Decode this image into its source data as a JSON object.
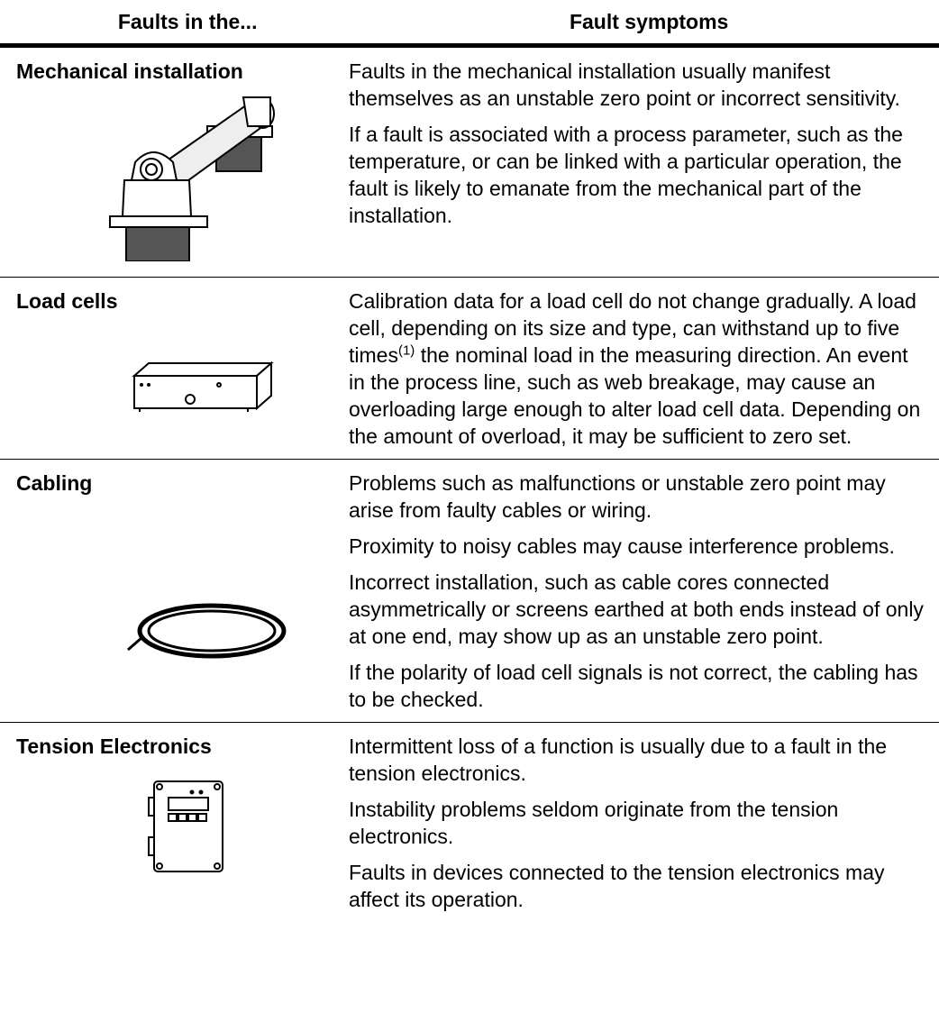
{
  "table": {
    "header": [
      "Faults in the...",
      "Fault symptoms"
    ],
    "rows": [
      {
        "fault": "Mechanical installation",
        "symptoms": [
          {
            "text": "Faults in the mechanical installation usually manifest themselves as an unstable zero point or incorrect sensitivity."
          },
          {
            "text": "If a fault is associated with a process parameter, such as the temperature, or can be linked with a particular operation, the fault is likely to emanate from the mechanical part of the installation."
          }
        ]
      },
      {
        "fault": "Load cells",
        "symptoms": [
          {
            "text": "Calibration data for a load cell do not change gradually. A load cell, depending on its size and type, can withstand up to five times",
            "superscript": "(1)",
            "text_after": "the nominal load in the measuring direction. An event in the process line, such as web breakage, may cause an overloading large enough to alter load cell data. Depending on the amount of overload, it may be sufficient to zero set."
          }
        ]
      },
      {
        "fault": "Cabling",
        "symptoms": [
          {
            "text": "Problems such as malfunctions or unstable zero point may arise from faulty cables or wiring."
          },
          {
            "text": "Proximity to noisy cables may cause interference problems."
          },
          {
            "text": "Incorrect installation, such as cable cores connected asymmetrically or screens earthed at both ends instead of only at one end, may show up as an unstable zero point."
          },
          {
            "text": "If the polarity of load cell signals is not correct, the cabling has to be checked."
          }
        ]
      },
      {
        "fault": "Tension Electronics",
        "symptoms": [
          {
            "text": "Intermittent loss of a function is usually due to a fault in the tension electronics."
          },
          {
            "text": "Instability problems seldom originate from the tension electronics."
          },
          {
            "text": "Faults in devices connected to the tension electronics may affect its operation."
          }
        ]
      }
    ]
  }
}
